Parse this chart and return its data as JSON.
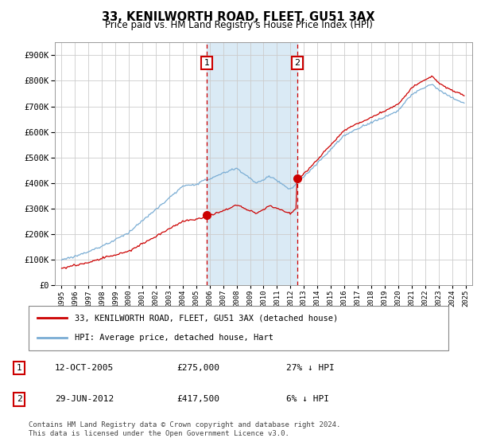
{
  "title": "33, KENILWORTH ROAD, FLEET, GU51 3AX",
  "subtitle": "Price paid vs. HM Land Registry's House Price Index (HPI)",
  "legend_line1": "33, KENILWORTH ROAD, FLEET, GU51 3AX (detached house)",
  "legend_line2": "HPI: Average price, detached house, Hart",
  "transaction1_date": "12-OCT-2005",
  "transaction1_price": "£275,000",
  "transaction1_hpi": "27% ↓ HPI",
  "transaction2_date": "29-JUN-2012",
  "transaction2_price": "£417,500",
  "transaction2_hpi": "6% ↓ HPI",
  "footnote": "Contains HM Land Registry data © Crown copyright and database right 2024.\nThis data is licensed under the Open Government Licence v3.0.",
  "red_color": "#cc0000",
  "blue_color": "#7aadd4",
  "shaded_color": "#daeaf5",
  "vline_color": "#cc0000",
  "grid_color": "#cccccc",
  "ylim": [
    0,
    950000
  ],
  "yticks": [
    0,
    100000,
    200000,
    300000,
    400000,
    500000,
    600000,
    700000,
    800000,
    900000
  ],
  "xlim_start": 1994.5,
  "xlim_end": 2025.5,
  "transaction1_x": 2005.79,
  "transaction1_y": 275000,
  "transaction2_x": 2012.49,
  "transaction2_y": 417500,
  "vline1_x": 2005.79,
  "vline2_x": 2012.49
}
